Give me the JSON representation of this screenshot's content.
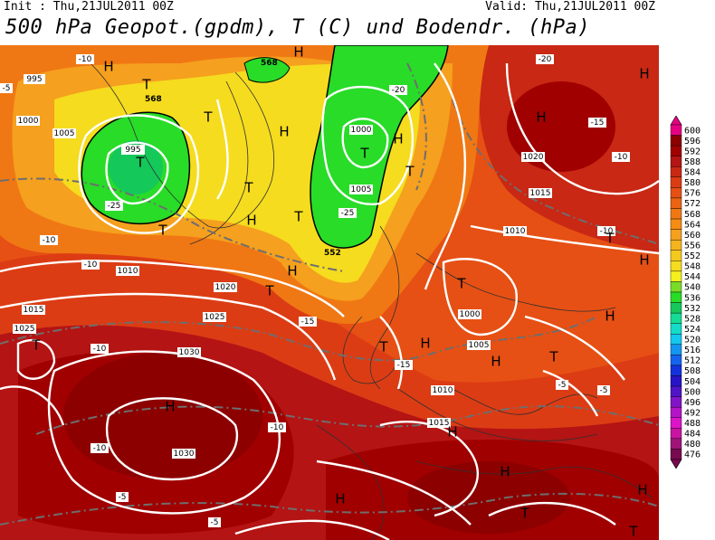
{
  "header": {
    "init": "Init : Thu,21JUL2011 00Z",
    "valid": "Valid: Thu,21JUL2011 00Z",
    "title": "500 hPa Geopot.(gpdm), T (C) und Bodendr. (hPa)"
  },
  "legend": {
    "levels": [
      "600",
      "596",
      "592",
      "588",
      "584",
      "580",
      "576",
      "572",
      "568",
      "564",
      "560",
      "556",
      "552",
      "548",
      "544",
      "540",
      "536",
      "532",
      "528",
      "524",
      "520",
      "516",
      "512",
      "508",
      "504",
      "500",
      "496",
      "492",
      "488",
      "484",
      "480",
      "476"
    ],
    "colors": [
      "#e60082",
      "#8c0000",
      "#a00000",
      "#b41414",
      "#c82814",
      "#dc3c14",
      "#e65014",
      "#eb6414",
      "#f07814",
      "#f58c14",
      "#f5a01e",
      "#f5b41e",
      "#f5c81e",
      "#f5dc1e",
      "#f5f01e",
      "#78dc28",
      "#28dc28",
      "#14c85a",
      "#14dc96",
      "#14dcc8",
      "#14c8f0",
      "#1496f0",
      "#1464f0",
      "#1432dc",
      "#2814c8",
      "#5014c8",
      "#8214c8",
      "#b414c8",
      "#dc14c8",
      "#c814a0",
      "#a01478",
      "#780a50"
    ]
  },
  "map": {
    "pressure_labels": [
      "995",
      "1000",
      "1005",
      "1010",
      "1015",
      "1020",
      "1025",
      "1030",
      "1000",
      "1005",
      "1010",
      "1015",
      "1020",
      "1025",
      "1030",
      "995",
      "1000",
      "1005",
      "1010",
      "1015"
    ],
    "temp_labels": [
      "-5",
      "-10",
      "-15",
      "-20",
      "-25"
    ],
    "geopot_labels": [
      "568",
      "568",
      "552",
      "568"
    ],
    "highs": [
      "H"
    ],
    "lows": [
      "T"
    ]
  }
}
